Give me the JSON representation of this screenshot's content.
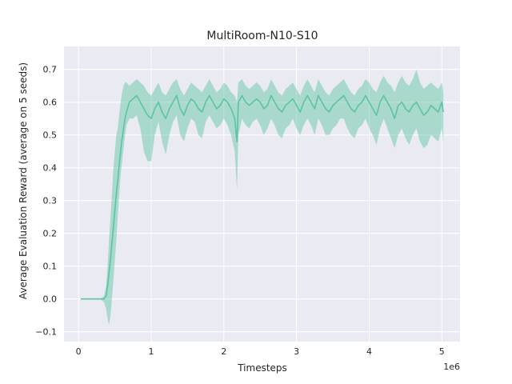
{
  "chart_data": {
    "type": "line",
    "title": "MultiRoom-N10-S10",
    "xlabel": "Timesteps",
    "ylabel": "Average Evaluation Reward (average on 5 seeds)",
    "x_offset_label": "1e6",
    "xlim": [
      -0.2,
      5.25
    ],
    "ylim": [
      -0.13,
      0.77
    ],
    "xticks": [
      0,
      1,
      2,
      3,
      4,
      5
    ],
    "xtick_labels": [
      "0",
      "1",
      "2",
      "3",
      "4",
      "5"
    ],
    "yticks": [
      -0.1,
      0.0,
      0.1,
      0.2,
      0.3,
      0.4,
      0.5,
      0.6,
      0.7
    ],
    "ytick_labels": [
      "−0.1",
      "0.0",
      "0.1",
      "0.2",
      "0.3",
      "0.4",
      "0.5",
      "0.6",
      "0.7"
    ],
    "grid": true,
    "legend": "none",
    "colors": {
      "line": "#5cc4a0",
      "band": "#5cc4a0",
      "plot_bg": "#eaeaf2",
      "grid": "#ffffff"
    },
    "series": [
      {
        "x": [
          0.03,
          0.1,
          0.2,
          0.3,
          0.35,
          0.38,
          0.4,
          0.42,
          0.44,
          0.46,
          0.48,
          0.5,
          0.52,
          0.54,
          0.56,
          0.58,
          0.6,
          0.62,
          0.64,
          0.66,
          0.7,
          0.75,
          0.8,
          0.85,
          0.9,
          0.95,
          1.0,
          1.05,
          1.1,
          1.15,
          1.2,
          1.25,
          1.3,
          1.35,
          1.4,
          1.45,
          1.5,
          1.55,
          1.6,
          1.65,
          1.7,
          1.75,
          1.8,
          1.85,
          1.9,
          1.95,
          2.0,
          2.05,
          2.1,
          2.15,
          2.18,
          2.2,
          2.25,
          2.3,
          2.35,
          2.4,
          2.45,
          2.5,
          2.55,
          2.6,
          2.65,
          2.7,
          2.75,
          2.8,
          2.85,
          2.9,
          2.95,
          3.0,
          3.05,
          3.1,
          3.15,
          3.2,
          3.25,
          3.3,
          3.35,
          3.4,
          3.45,
          3.5,
          3.55,
          3.6,
          3.65,
          3.7,
          3.75,
          3.8,
          3.85,
          3.9,
          3.95,
          4.0,
          4.05,
          4.1,
          4.15,
          4.2,
          4.25,
          4.3,
          4.35,
          4.4,
          4.45,
          4.5,
          4.55,
          4.6,
          4.65,
          4.7,
          4.75,
          4.8,
          4.85,
          4.9,
          4.95,
          5.0,
          5.02
        ],
        "mean": [
          0.0,
          0.0,
          0.0,
          0.0,
          0.0,
          0.01,
          0.04,
          0.08,
          0.12,
          0.17,
          0.22,
          0.27,
          0.32,
          0.36,
          0.41,
          0.45,
          0.49,
          0.52,
          0.55,
          0.57,
          0.6,
          0.61,
          0.62,
          0.6,
          0.58,
          0.56,
          0.55,
          0.58,
          0.6,
          0.57,
          0.55,
          0.58,
          0.6,
          0.62,
          0.58,
          0.56,
          0.59,
          0.61,
          0.6,
          0.58,
          0.57,
          0.6,
          0.62,
          0.6,
          0.58,
          0.59,
          0.61,
          0.6,
          0.58,
          0.55,
          0.48,
          0.6,
          0.62,
          0.6,
          0.59,
          0.6,
          0.61,
          0.6,
          0.58,
          0.59,
          0.62,
          0.6,
          0.58,
          0.57,
          0.59,
          0.6,
          0.61,
          0.59,
          0.57,
          0.6,
          0.62,
          0.6,
          0.58,
          0.62,
          0.6,
          0.58,
          0.57,
          0.59,
          0.6,
          0.61,
          0.62,
          0.6,
          0.58,
          0.57,
          0.59,
          0.6,
          0.62,
          0.6,
          0.58,
          0.56,
          0.6,
          0.62,
          0.6,
          0.58,
          0.55,
          0.59,
          0.6,
          0.58,
          0.57,
          0.59,
          0.6,
          0.58,
          0.56,
          0.57,
          0.59,
          0.58,
          0.57,
          0.6,
          0.57
        ],
        "lower": [
          0.0,
          0.0,
          0.0,
          0.0,
          -0.01,
          -0.03,
          -0.06,
          -0.08,
          -0.05,
          0.0,
          0.06,
          0.12,
          0.18,
          0.25,
          0.32,
          0.38,
          0.42,
          0.46,
          0.5,
          0.53,
          0.55,
          0.55,
          0.56,
          0.52,
          0.45,
          0.42,
          0.42,
          0.5,
          0.54,
          0.48,
          0.44,
          0.5,
          0.54,
          0.56,
          0.5,
          0.48,
          0.52,
          0.55,
          0.54,
          0.5,
          0.49,
          0.54,
          0.56,
          0.54,
          0.52,
          0.53,
          0.55,
          0.53,
          0.5,
          0.45,
          0.33,
          0.5,
          0.55,
          0.53,
          0.52,
          0.54,
          0.55,
          0.53,
          0.5,
          0.52,
          0.55,
          0.53,
          0.5,
          0.49,
          0.52,
          0.53,
          0.55,
          0.52,
          0.5,
          0.53,
          0.55,
          0.53,
          0.5,
          0.55,
          0.53,
          0.5,
          0.5,
          0.52,
          0.53,
          0.55,
          0.55,
          0.52,
          0.5,
          0.49,
          0.52,
          0.53,
          0.55,
          0.52,
          0.5,
          0.47,
          0.52,
          0.55,
          0.52,
          0.49,
          0.46,
          0.5,
          0.52,
          0.49,
          0.47,
          0.5,
          0.52,
          0.48,
          0.46,
          0.47,
          0.5,
          0.49,
          0.48,
          0.52,
          0.48
        ],
        "upper": [
          0.0,
          0.0,
          0.0,
          0.0,
          0.01,
          0.04,
          0.1,
          0.18,
          0.25,
          0.32,
          0.4,
          0.45,
          0.5,
          0.52,
          0.56,
          0.6,
          0.63,
          0.65,
          0.66,
          0.66,
          0.65,
          0.66,
          0.67,
          0.66,
          0.65,
          0.63,
          0.62,
          0.64,
          0.66,
          0.63,
          0.62,
          0.64,
          0.66,
          0.67,
          0.64,
          0.62,
          0.64,
          0.66,
          0.65,
          0.64,
          0.63,
          0.65,
          0.67,
          0.65,
          0.63,
          0.64,
          0.66,
          0.65,
          0.63,
          0.62,
          0.6,
          0.66,
          0.67,
          0.65,
          0.64,
          0.65,
          0.66,
          0.65,
          0.63,
          0.64,
          0.67,
          0.65,
          0.63,
          0.62,
          0.64,
          0.65,
          0.66,
          0.64,
          0.62,
          0.65,
          0.67,
          0.65,
          0.63,
          0.67,
          0.65,
          0.63,
          0.62,
          0.64,
          0.65,
          0.66,
          0.67,
          0.65,
          0.63,
          0.62,
          0.64,
          0.65,
          0.67,
          0.66,
          0.64,
          0.63,
          0.66,
          0.68,
          0.66,
          0.65,
          0.63,
          0.66,
          0.68,
          0.66,
          0.65,
          0.67,
          0.7,
          0.66,
          0.64,
          0.65,
          0.66,
          0.65,
          0.64,
          0.66,
          0.63
        ]
      }
    ]
  }
}
